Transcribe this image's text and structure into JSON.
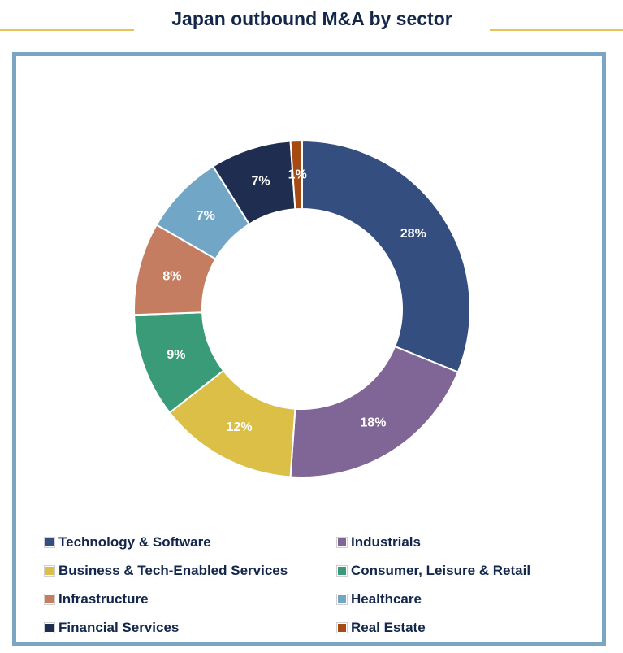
{
  "chart_data": {
    "type": "pie",
    "title": "Japan outbound M&A by sector",
    "donut": true,
    "categories": [
      "Technology & Software",
      "Industrials",
      "Business & Tech-Enabled Services",
      "Consumer, Leisure & Retail",
      "Infrastructure",
      "Healthcare",
      "Financial Services",
      "Real Estate"
    ],
    "values": [
      28,
      18,
      12,
      9,
      8,
      7,
      7,
      1
    ],
    "labels": [
      "28%",
      "18%",
      "12%",
      "9%",
      "8%",
      "7%",
      "7%",
      "1%"
    ],
    "colors": [
      "#344e80",
      "#7f6697",
      "#dbbf47",
      "#3a9b78",
      "#c47d60",
      "#72a6c6",
      "#1e2d50",
      "#a64a13"
    ],
    "legend_position": "bottom"
  }
}
